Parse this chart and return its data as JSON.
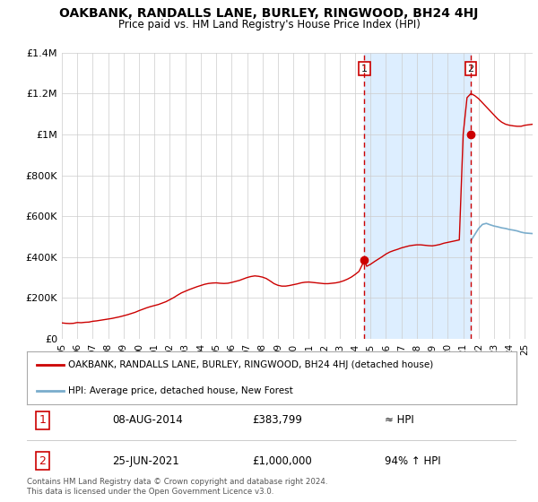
{
  "title": "OAKBANK, RANDALLS LANE, BURLEY, RINGWOOD, BH24 4HJ",
  "subtitle": "Price paid vs. HM Land Registry's House Price Index (HPI)",
  "property_label": "OAKBANK, RANDALLS LANE, BURLEY, RINGWOOD, BH24 4HJ (detached house)",
  "hpi_label": "HPI: Average price, detached house, New Forest",
  "sale1_date": "08-AUG-2014",
  "sale1_price": "£383,799",
  "sale1_vs": "≈ HPI",
  "sale2_date": "25-JUN-2021",
  "sale2_price": "£1,000,000",
  "sale2_vs": "94% ↑ HPI",
  "footer": "Contains HM Land Registry data © Crown copyright and database right 2024.\nThis data is licensed under the Open Government Licence v3.0.",
  "property_color": "#cc0000",
  "hpi_color": "#7aadcc",
  "vline_color": "#cc0000",
  "shade_color": "#ddeeff",
  "background_color": "#ffffff",
  "grid_color": "#cccccc",
  "ylim": [
    0,
    1400000
  ],
  "xlim_start": 1995.0,
  "xlim_end": 2025.5,
  "sale1_year": 2014.6,
  "sale2_year": 2021.5,
  "sale1_price_val": 383799,
  "sale2_price_val": 1000000,
  "hpi_years": [
    2021.5,
    2021.75,
    2022.0,
    2022.25,
    2022.5,
    2022.75,
    2023.0,
    2023.25,
    2023.5,
    2023.75,
    2024.0,
    2024.25,
    2024.5,
    2024.75,
    2025.0,
    2025.5
  ],
  "hpi_values": [
    480000,
    510000,
    540000,
    560000,
    565000,
    558000,
    552000,
    548000,
    543000,
    540000,
    535000,
    532000,
    528000,
    522000,
    518000,
    515000
  ],
  "prop_years": [
    1995.0,
    1995.25,
    1995.5,
    1995.75,
    1996.0,
    1996.25,
    1996.5,
    1996.75,
    1997.0,
    1997.25,
    1997.5,
    1997.75,
    1998.0,
    1998.25,
    1998.5,
    1998.75,
    1999.0,
    1999.25,
    1999.5,
    1999.75,
    2000.0,
    2000.25,
    2000.5,
    2000.75,
    2001.0,
    2001.25,
    2001.5,
    2001.75,
    2002.0,
    2002.25,
    2002.5,
    2002.75,
    2003.0,
    2003.25,
    2003.5,
    2003.75,
    2004.0,
    2004.25,
    2004.5,
    2004.75,
    2005.0,
    2005.25,
    2005.5,
    2005.75,
    2006.0,
    2006.25,
    2006.5,
    2006.75,
    2007.0,
    2007.25,
    2007.5,
    2007.75,
    2008.0,
    2008.25,
    2008.5,
    2008.75,
    2009.0,
    2009.25,
    2009.5,
    2009.75,
    2010.0,
    2010.25,
    2010.5,
    2010.75,
    2011.0,
    2011.25,
    2011.5,
    2011.75,
    2012.0,
    2012.25,
    2012.5,
    2012.75,
    2013.0,
    2013.25,
    2013.5,
    2013.75,
    2014.0,
    2014.25,
    2014.6,
    2014.75,
    2015.0,
    2015.25,
    2015.5,
    2015.75,
    2016.0,
    2016.25,
    2016.5,
    2016.75,
    2017.0,
    2017.25,
    2017.5,
    2017.75,
    2018.0,
    2018.25,
    2018.5,
    2018.75,
    2019.0,
    2019.25,
    2019.5,
    2019.75,
    2020.0,
    2020.25,
    2020.5,
    2020.75,
    2021.0,
    2021.25,
    2021.5,
    2021.75,
    2022.0,
    2022.25,
    2022.5,
    2022.75,
    2023.0,
    2023.25,
    2023.5,
    2023.75,
    2024.0,
    2024.25,
    2024.5,
    2024.75,
    2025.0,
    2025.5
  ],
  "prop_values": [
    78000,
    76000,
    75000,
    76000,
    80000,
    79000,
    81000,
    82000,
    86000,
    88000,
    91000,
    94000,
    97000,
    100000,
    104000,
    108000,
    113000,
    118000,
    124000,
    130000,
    138000,
    145000,
    152000,
    158000,
    163000,
    168000,
    175000,
    182000,
    192000,
    202000,
    214000,
    225000,
    233000,
    241000,
    248000,
    255000,
    261000,
    267000,
    271000,
    273000,
    274000,
    272000,
    271000,
    272000,
    276000,
    281000,
    286000,
    293000,
    300000,
    305000,
    308000,
    306000,
    302000,
    295000,
    283000,
    270000,
    262000,
    258000,
    258000,
    261000,
    265000,
    269000,
    274000,
    277000,
    278000,
    276000,
    274000,
    272000,
    270000,
    270000,
    272000,
    274000,
    278000,
    284000,
    292000,
    302000,
    315000,
    330000,
    383799,
    355000,
    365000,
    378000,
    390000,
    402000,
    415000,
    425000,
    432000,
    438000,
    445000,
    450000,
    455000,
    458000,
    460000,
    460000,
    458000,
    456000,
    455000,
    458000,
    462000,
    468000,
    472000,
    476000,
    480000,
    484000,
    1000000,
    1180000,
    1200000,
    1190000,
    1175000,
    1155000,
    1135000,
    1115000,
    1095000,
    1075000,
    1060000,
    1050000,
    1045000,
    1042000,
    1040000,
    1040000,
    1045000,
    1050000
  ]
}
